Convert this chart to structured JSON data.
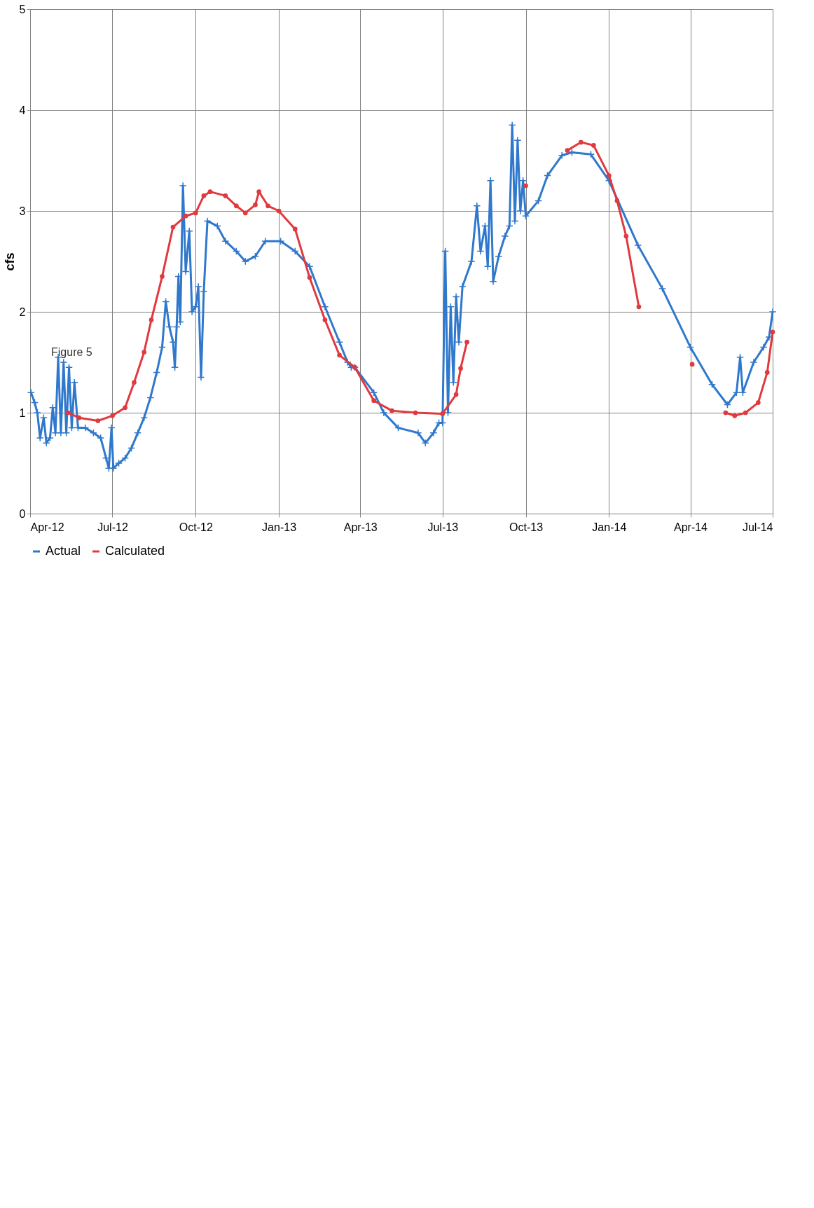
{
  "chart_data": {
    "type": "line",
    "ylabel": "cfs",
    "xlim": [
      "2012-04-01",
      "2014-07-01"
    ],
    "ylim": [
      0,
      5
    ],
    "yticks": [
      0,
      1,
      2,
      3,
      4,
      5
    ],
    "xticks": [
      {
        "value": "2012-04-01",
        "label": "Apr-12"
      },
      {
        "value": "2012-07-01",
        "label": "Jul-12"
      },
      {
        "value": "2012-10-01",
        "label": "Oct-12"
      },
      {
        "value": "2013-01-01",
        "label": "Jan-13"
      },
      {
        "value": "2013-04-01",
        "label": "Apr-13"
      },
      {
        "value": "2013-07-01",
        "label": "Jul-13"
      },
      {
        "value": "2013-10-01",
        "label": "Oct-13"
      },
      {
        "value": "2014-01-01",
        "label": "Jan-14"
      },
      {
        "value": "2014-04-01",
        "label": "Apr-14"
      },
      {
        "value": "2014-07-01",
        "label": "Jul-14"
      }
    ],
    "grid": true,
    "legend": "bottom",
    "annotations": [
      "Figure 5"
    ],
    "series": [
      {
        "name": "Actual",
        "color": "#2f78cc",
        "marker": "cross",
        "x": [
          "2012-04-02",
          "2012-04-06",
          "2012-04-09",
          "2012-04-12",
          "2012-04-16",
          "2012-04-19",
          "2012-04-23",
          "2012-04-26",
          "2012-04-29",
          "2012-05-02",
          "2012-05-05",
          "2012-05-08",
          "2012-05-11",
          "2012-05-14",
          "2012-05-17",
          "2012-05-20",
          "2012-05-24",
          "2012-06-01",
          "2012-06-10",
          "2012-06-18",
          "2012-06-24",
          "2012-06-27",
          "2012-06-30",
          "2012-07-02",
          "2012-07-08",
          "2012-07-15",
          "2012-07-22",
          "2012-07-29",
          "2012-08-05",
          "2012-08-12",
          "2012-08-19",
          "2012-08-25",
          "2012-08-29",
          "2012-09-02",
          "2012-09-06",
          "2012-09-08",
          "2012-09-10",
          "2012-09-12",
          "2012-09-14",
          "2012-09-17",
          "2012-09-20",
          "2012-09-24",
          "2012-09-27",
          "2012-10-01",
          "2012-10-04",
          "2012-10-07",
          "2012-10-10",
          "2012-10-14",
          "2012-10-25",
          "2012-11-03",
          "2012-11-15",
          "2012-11-25",
          "2012-12-06",
          "2012-12-17",
          "2013-01-03",
          "2013-01-19",
          "2013-02-04",
          "2013-02-21",
          "2013-03-09",
          "2013-03-18",
          "2013-03-22",
          "2013-03-26",
          "2013-04-16",
          "2013-04-27",
          "2013-05-13",
          "2013-06-04",
          "2013-06-12",
          "2013-06-21",
          "2013-06-27",
          "2013-07-01",
          "2013-07-04",
          "2013-07-07",
          "2013-07-10",
          "2013-07-13",
          "2013-07-16",
          "2013-07-19",
          "2013-07-23",
          "2013-08-02",
          "2013-08-08",
          "2013-08-12",
          "2013-08-17",
          "2013-08-20",
          "2013-08-23",
          "2013-08-26",
          "2013-09-01",
          "2013-09-08",
          "2013-09-13",
          "2013-09-16",
          "2013-09-19",
          "2013-09-22",
          "2013-09-25",
          "2013-09-28",
          "2013-10-01",
          "2013-10-15",
          "2013-10-25",
          "2013-11-10",
          "2013-11-21",
          "2013-12-12",
          "2014-01-01",
          "2014-02-02",
          "2014-03-01",
          "2014-04-01",
          "2014-04-25",
          "2014-05-12",
          "2014-05-22",
          "2014-05-26",
          "2014-05-29",
          "2014-06-10",
          "2014-06-21",
          "2014-06-27",
          "2014-07-01"
        ],
        "values": [
          1.2,
          1.1,
          1.0,
          0.75,
          0.95,
          0.7,
          0.75,
          1.05,
          0.8,
          1.55,
          0.8,
          1.5,
          0.8,
          1.45,
          0.85,
          1.3,
          0.85,
          0.85,
          0.8,
          0.75,
          0.55,
          0.45,
          0.85,
          0.45,
          0.5,
          0.55,
          0.65,
          0.8,
          0.95,
          1.15,
          1.4,
          1.65,
          2.1,
          1.85,
          1.7,
          1.45,
          1.85,
          2.35,
          1.9,
          3.25,
          2.4,
          2.8,
          2.0,
          2.05,
          2.25,
          1.35,
          2.2,
          2.9,
          2.85,
          2.7,
          2.6,
          2.5,
          2.55,
          2.7,
          2.7,
          2.6,
          2.45,
          2.05,
          1.7,
          1.5,
          1.45,
          1.45,
          1.2,
          1.0,
          0.85,
          0.8,
          0.7,
          0.8,
          0.9,
          0.9,
          2.6,
          1.0,
          2.05,
          1.3,
          2.15,
          1.7,
          2.25,
          2.5,
          3.05,
          2.6,
          2.85,
          2.45,
          3.3,
          2.3,
          2.55,
          2.75,
          2.85,
          3.85,
          2.9,
          3.7,
          3.0,
          3.3,
          2.95,
          3.1,
          3.35,
          3.55,
          3.58,
          3.56,
          3.3,
          2.66,
          2.23,
          1.65,
          1.28,
          1.08,
          1.2,
          1.55,
          1.2,
          1.5,
          1.65,
          1.75,
          2.0
        ]
      },
      {
        "name": "Calculated",
        "color": "#e0393e",
        "marker": "circle",
        "x": [
          "2012-05-13",
          "2012-05-25",
          "2012-06-15",
          "2012-07-01",
          "2012-07-15",
          "2012-07-25",
          "2012-08-05",
          "2012-08-13",
          "2012-08-25",
          "2012-09-06",
          "2012-09-20",
          "2012-10-01",
          "2012-10-10",
          "2012-10-17",
          "2012-11-03",
          "2012-11-15",
          "2012-11-25",
          "2012-12-06",
          "2012-12-10",
          "2012-12-20",
          "2013-01-01",
          "2013-01-19",
          "2013-02-04",
          "2013-02-21",
          "2013-03-09",
          "2013-03-26",
          "2013-04-16",
          "2013-05-06",
          "2013-06-01",
          "2013-07-01",
          "2013-07-16",
          "2013-07-21",
          "2013-07-28",
          "2013-09-01",
          "2013-10-01",
          "2013-10-20",
          "2013-11-16",
          "2013-12-01",
          "2013-12-15",
          "2014-01-01",
          "2014-01-10",
          "2014-01-20",
          "2014-02-03",
          "2014-02-20",
          "2014-04-03",
          "2014-04-20",
          "2014-05-10",
          "2014-05-20",
          "2014-06-01",
          "2014-06-15",
          "2014-06-25",
          "2014-07-01"
        ],
        "values": [
          1.0,
          0.95,
          0.92,
          0.97,
          1.05,
          1.3,
          1.6,
          1.92,
          2.35,
          2.84,
          2.95,
          2.98,
          3.15,
          3.19,
          3.15,
          3.05,
          2.98,
          3.06,
          3.19,
          3.05,
          3.0,
          2.82,
          2.34,
          1.92,
          1.57,
          1.45,
          1.12,
          1.02,
          1.0,
          0.99,
          1.18,
          1.44,
          1.7,
          null,
          3.25,
          null,
          3.6,
          3.68,
          3.65,
          3.35,
          3.1,
          2.75,
          2.05,
          null,
          1.48,
          null,
          1.0,
          0.97,
          1.0,
          1.1,
          1.4,
          1.8
        ]
      }
    ]
  }
}
